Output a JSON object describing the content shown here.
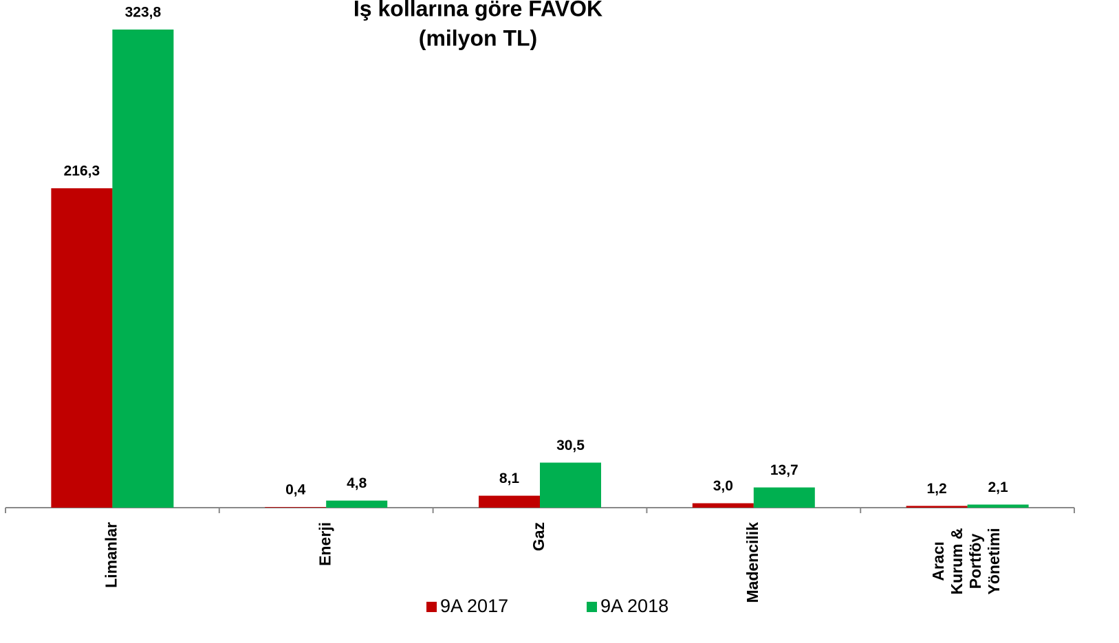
{
  "chart_data": {
    "type": "bar",
    "title": "Iş kollarına göre FAVÖK",
    "subtitle": "(milyon TL)",
    "categories": [
      "Limanlar",
      "Enerji",
      "Gaz",
      "Madencilik",
      "Aracı Kurum & Portföy Yönetimi"
    ],
    "series": [
      {
        "name": "9A 2017",
        "color": "#c00000",
        "values": [
          216.3,
          0.4,
          8.1,
          3.0,
          1.2
        ],
        "value_labels": [
          "216,3",
          "0,4",
          "8,1",
          "3,0",
          "1,2"
        ]
      },
      {
        "name": "9A 2018",
        "color": "#00b050",
        "values": [
          323.8,
          4.8,
          30.5,
          13.7,
          2.1
        ],
        "value_labels": [
          "323,8",
          "4,8",
          "30,5",
          "13,7",
          "2,1"
        ]
      }
    ],
    "ylim": [
      0,
      323.8
    ]
  }
}
